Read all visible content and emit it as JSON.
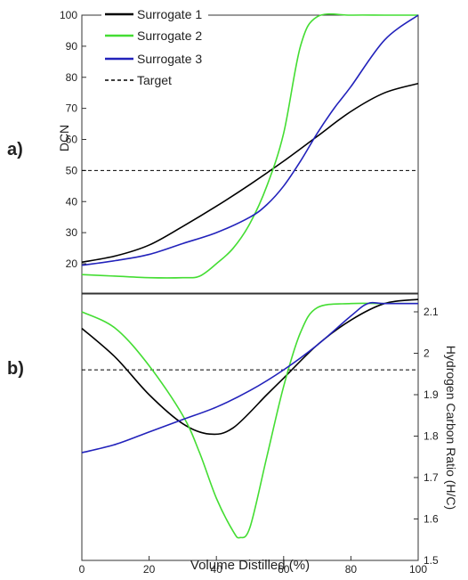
{
  "chart_data": {
    "type": "line",
    "panels": [
      {
        "panel_label": "a)",
        "ylabel": "DCN",
        "y_axis_side": "left",
        "ylim": [
          12,
          100
        ],
        "yticks": [
          20,
          30,
          40,
          50,
          60,
          70,
          80,
          90,
          100
        ],
        "xlim": [
          0,
          100
        ],
        "target": 50,
        "series": [
          {
            "name": "Surrogate 1",
            "color": "#000000",
            "x": [
              0,
              10,
              20,
              30,
              40,
              50,
              60,
              70,
              80,
              90,
              100
            ],
            "y": [
              20.5,
              22.5,
              26,
              32,
              38.5,
              45.5,
              53,
              61,
              69,
              75,
              78
            ]
          },
          {
            "name": "Surrogate 2",
            "color": "#44dd33",
            "x": [
              0,
              10,
              20,
              30,
              35,
              40,
              45,
              50,
              55,
              60,
              65,
              70,
              80,
              90,
              100
            ],
            "y": [
              16.5,
              16,
              15.5,
              15.5,
              16,
              20,
              25,
              33,
              45,
              62,
              90,
              99.5,
              100,
              100,
              100
            ]
          },
          {
            "name": "Surrogate 3",
            "color": "#2222bb",
            "x": [
              0,
              10,
              20,
              30,
              40,
              50,
              55,
              60,
              65,
              70,
              75,
              80,
              90,
              100
            ],
            "y": [
              19.5,
              21,
              23,
              26.5,
              30,
              35,
              39,
              45,
              53,
              62,
              70,
              77,
              92,
              100
            ]
          }
        ]
      },
      {
        "panel_label": "b)",
        "ylabel": "Hydrogen Carbon Ratio (H/C)",
        "y_axis_side": "right",
        "ylim": [
          1.5,
          2.15
        ],
        "yticks": [
          1.5,
          1.6,
          1.7,
          1.8,
          1.9,
          2,
          2.1
        ],
        "ytick_labels": [
          "1.5",
          "1.6",
          "1.7",
          "1.8",
          "1.9",
          "2",
          "2.1"
        ],
        "xlim": [
          0,
          100
        ],
        "target": 1.96,
        "series": [
          {
            "name": "Surrogate 1",
            "color": "#000000",
            "x": [
              0,
              10,
              20,
              30,
              38,
              45,
              55,
              60,
              70,
              80,
              90,
              100
            ],
            "y": [
              2.06,
              1.99,
              1.9,
              1.83,
              1.805,
              1.82,
              1.9,
              1.94,
              2.02,
              2.08,
              2.12,
              2.13
            ]
          },
          {
            "name": "Surrogate 2",
            "color": "#44dd33",
            "x": [
              0,
              10,
              20,
              30,
              35,
              40,
              45,
              47,
              50,
              55,
              60,
              65,
              70,
              80,
              90,
              100
            ],
            "y": [
              2.1,
              2.06,
              1.97,
              1.85,
              1.76,
              1.65,
              1.57,
              1.555,
              1.58,
              1.75,
              1.92,
              2.05,
              2.11,
              2.12,
              2.12,
              2.12
            ]
          },
          {
            "name": "Surrogate 3",
            "color": "#2222bb",
            "x": [
              0,
              10,
              20,
              30,
              40,
              50,
              60,
              70,
              80,
              85,
              90,
              100
            ],
            "y": [
              1.76,
              1.78,
              1.81,
              1.84,
              1.87,
              1.91,
              1.96,
              2.02,
              2.09,
              2.12,
              2.12,
              2.12
            ]
          }
        ]
      }
    ],
    "xlabel": "Volume Distilled (%)",
    "xticks": [
      0,
      20,
      40,
      60,
      80,
      100
    ],
    "legend": {
      "placement": "top-left",
      "entries": [
        {
          "label": "Surrogate 1",
          "color": "#000000",
          "style": "solid"
        },
        {
          "label": "Surrogate 2",
          "color": "#44dd33",
          "style": "solid"
        },
        {
          "label": "Surrogate 3",
          "color": "#2222bb",
          "style": "solid"
        },
        {
          "label": "Target",
          "color": "#000000",
          "style": "dashed"
        }
      ]
    },
    "grid": false
  }
}
